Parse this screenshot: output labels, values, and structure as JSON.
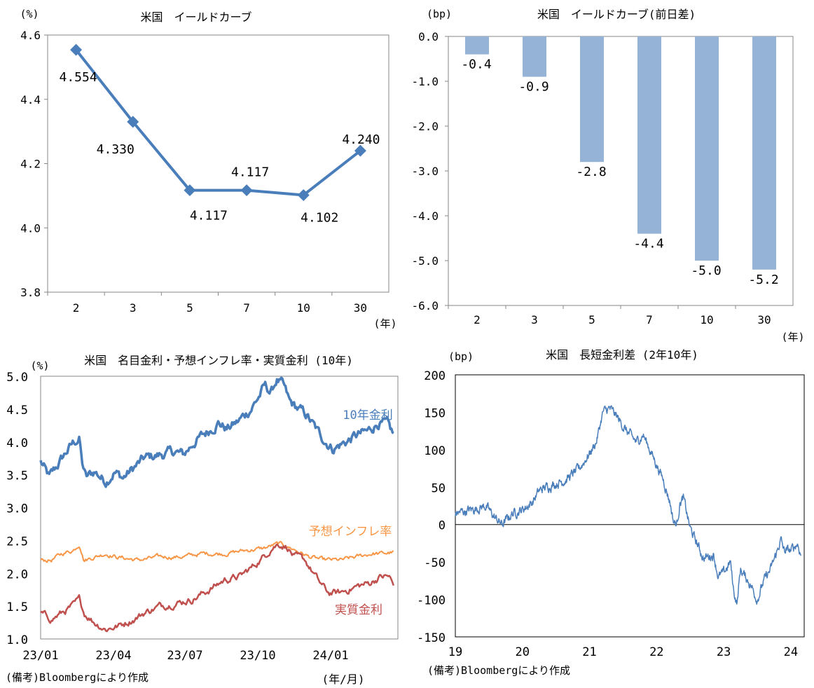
{
  "chart_data": [
    {
      "id": "tl",
      "type": "line",
      "title": "米国　イールドカーブ",
      "unit_label": "(%)",
      "xunit_label": "(年)",
      "categories": [
        "2",
        "3",
        "5",
        "7",
        "10",
        "30"
      ],
      "values": [
        4.554,
        4.33,
        4.117,
        4.117,
        4.102,
        4.24
      ],
      "value_labels": [
        "4.554",
        "4.330",
        "4.117",
        "4.117",
        "4.102",
        "4.240"
      ],
      "ylim": [
        3.8,
        4.6
      ],
      "yticks": [
        "3.8",
        "4.0",
        "4.2",
        "4.4",
        "4.6"
      ],
      "color": "#4a7ebb"
    },
    {
      "id": "tr",
      "type": "bar",
      "title": "米国　イールドカーブ(前日差)",
      "unit_label": "(bp)",
      "xunit_label": "(年)",
      "categories": [
        "2",
        "3",
        "5",
        "7",
        "10",
        "30"
      ],
      "values": [
        -0.4,
        -0.9,
        -2.8,
        -4.4,
        -5.0,
        -5.2
      ],
      "value_labels": [
        "-0.4",
        "-0.9",
        "-2.8",
        "-4.4",
        "-5.0",
        "-5.2"
      ],
      "ylim": [
        -6.0,
        0.0
      ],
      "yticks": [
        "0.0",
        "-1.0",
        "-2.0",
        "-3.0",
        "-4.0",
        "-5.0",
        "-6.0"
      ],
      "color": "#95b3d7"
    },
    {
      "id": "bl",
      "type": "line",
      "title": "米国　名目金利・予想インフレ率・実質金利 (10年)",
      "unit_label": "(%)",
      "xunit_label": "(年/月)",
      "note": "(備考)Bloombergにより作成",
      "xticks": [
        "23/01",
        "23/04",
        "23/07",
        "23/10",
        "24/01"
      ],
      "ylim": [
        1.0,
        5.0
      ],
      "yticks": [
        "1.0",
        "1.5",
        "2.0",
        "2.5",
        "3.0",
        "3.5",
        "4.0",
        "4.5",
        "5.0"
      ],
      "series": [
        {
          "name": "10年金利",
          "color": "#4a7ebb",
          "keypoints": [
            [
              0,
              3.7
            ],
            [
              8,
              3.45
            ],
            [
              14,
              3.6
            ],
            [
              24,
              3.85
            ],
            [
              31,
              4.0
            ],
            [
              36,
              4.05
            ],
            [
              38,
              3.7
            ],
            [
              42,
              3.45
            ],
            [
              50,
              3.55
            ],
            [
              60,
              3.4
            ],
            [
              68,
              3.55
            ],
            [
              76,
              3.45
            ],
            [
              86,
              3.6
            ],
            [
              96,
              3.75
            ],
            [
              110,
              3.8
            ],
            [
              124,
              3.85
            ],
            [
              132,
              3.8
            ],
            [
              142,
              4.0
            ],
            [
              154,
              4.15
            ],
            [
              164,
              4.3
            ],
            [
              172,
              4.2
            ],
            [
              182,
              4.3
            ],
            [
              194,
              4.5
            ],
            [
              202,
              4.7
            ],
            [
              207,
              4.85
            ],
            [
              213,
              4.75
            ],
            [
              218,
              4.95
            ],
            [
              224,
              4.85
            ],
            [
              230,
              4.6
            ],
            [
              238,
              4.5
            ],
            [
              246,
              4.4
            ],
            [
              256,
              4.15
            ],
            [
              264,
              4.0
            ],
            [
              270,
              3.9
            ],
            [
              282,
              4.0
            ],
            [
              292,
              4.1
            ],
            [
              302,
              4.15
            ],
            [
              312,
              4.3
            ],
            [
              320,
              4.25
            ],
            [
              326,
              4.1
            ]
          ]
        },
        {
          "name": "予想インフレ率",
          "color": "#f79646",
          "keypoints": [
            [
              0,
              2.2
            ],
            [
              10,
              2.2
            ],
            [
              20,
              2.3
            ],
            [
              30,
              2.35
            ],
            [
              36,
              2.45
            ],
            [
              40,
              2.2
            ],
            [
              50,
              2.25
            ],
            [
              60,
              2.3
            ],
            [
              70,
              2.25
            ],
            [
              90,
              2.2
            ],
            [
              110,
              2.25
            ],
            [
              130,
              2.25
            ],
            [
              150,
              2.3
            ],
            [
              170,
              2.3
            ],
            [
              190,
              2.35
            ],
            [
              206,
              2.38
            ],
            [
              220,
              2.45
            ],
            [
              232,
              2.38
            ],
            [
              248,
              2.25
            ],
            [
              262,
              2.2
            ],
            [
              278,
              2.2
            ],
            [
              292,
              2.25
            ],
            [
              306,
              2.3
            ],
            [
              316,
              2.3
            ],
            [
              326,
              2.32
            ]
          ]
        },
        {
          "name": "実質金利",
          "color": "#c0504d",
          "keypoints": [
            [
              0,
              1.4
            ],
            [
              10,
              1.3
            ],
            [
              20,
              1.4
            ],
            [
              30,
              1.5
            ],
            [
              36,
              1.6
            ],
            [
              40,
              1.4
            ],
            [
              50,
              1.25
            ],
            [
              60,
              1.15
            ],
            [
              72,
              1.2
            ],
            [
              86,
              1.3
            ],
            [
              96,
              1.4
            ],
            [
              110,
              1.5
            ],
            [
              126,
              1.55
            ],
            [
              140,
              1.6
            ],
            [
              156,
              1.75
            ],
            [
              170,
              1.9
            ],
            [
              184,
              1.95
            ],
            [
              196,
              2.1
            ],
            [
              206,
              2.25
            ],
            [
              214,
              2.4
            ],
            [
              220,
              2.45
            ],
            [
              228,
              2.4
            ],
            [
              234,
              2.25
            ],
            [
              244,
              2.2
            ],
            [
              252,
              2.0
            ],
            [
              258,
              1.85
            ],
            [
              266,
              1.7
            ],
            [
              276,
              1.7
            ],
            [
              292,
              1.8
            ],
            [
              304,
              1.85
            ],
            [
              314,
              1.95
            ],
            [
              322,
              1.95
            ],
            [
              326,
              1.8
            ]
          ]
        }
      ]
    },
    {
      "id": "br",
      "type": "line",
      "title": "米国　長短金利差 (2年10年)",
      "unit_label": "(bp)",
      "note": "(備考)Bloombergにより作成",
      "xticks": [
        "19",
        "20",
        "21",
        "22",
        "23",
        "24"
      ],
      "ylim": [
        -150,
        200
      ],
      "yticks": [
        "200",
        "150",
        "100",
        "50",
        "0",
        "-50",
        "-100",
        "-150"
      ],
      "series": [
        {
          "name": "2年10年",
          "color": "#4a7ebb",
          "keypoints": [
            [
              2019.0,
              15
            ],
            [
              2019.25,
              20
            ],
            [
              2019.45,
              25
            ],
            [
              2019.6,
              8
            ],
            [
              2019.7,
              0
            ],
            [
              2019.85,
              15
            ],
            [
              2020.0,
              20
            ],
            [
              2020.15,
              30
            ],
            [
              2020.25,
              45
            ],
            [
              2020.35,
              50
            ],
            [
              2020.5,
              55
            ],
            [
              2020.65,
              60
            ],
            [
              2020.85,
              75
            ],
            [
              2021.0,
              95
            ],
            [
              2021.1,
              110
            ],
            [
              2021.2,
              150
            ],
            [
              2021.3,
              155
            ],
            [
              2021.4,
              145
            ],
            [
              2021.55,
              125
            ],
            [
              2021.7,
              110
            ],
            [
              2021.8,
              120
            ],
            [
              2021.9,
              100
            ],
            [
              2022.0,
              80
            ],
            [
              2022.1,
              60
            ],
            [
              2022.2,
              30
            ],
            [
              2022.25,
              5
            ],
            [
              2022.3,
              0
            ],
            [
              2022.35,
              30
            ],
            [
              2022.4,
              35
            ],
            [
              2022.5,
              -5
            ],
            [
              2022.6,
              -25
            ],
            [
              2022.7,
              -45
            ],
            [
              2022.85,
              -40
            ],
            [
              2022.92,
              -70
            ],
            [
              2023.0,
              -65
            ],
            [
              2023.1,
              -50
            ],
            [
              2023.15,
              -90
            ],
            [
              2023.2,
              -105
            ],
            [
              2023.25,
              -60
            ],
            [
              2023.4,
              -80
            ],
            [
              2023.5,
              -100
            ],
            [
              2023.6,
              -75
            ],
            [
              2023.7,
              -60
            ],
            [
              2023.8,
              -35
            ],
            [
              2023.85,
              -20
            ],
            [
              2023.9,
              -35
            ],
            [
              2024.0,
              -35
            ],
            [
              2024.1,
              -25
            ],
            [
              2024.15,
              -40
            ]
          ]
        }
      ]
    }
  ]
}
